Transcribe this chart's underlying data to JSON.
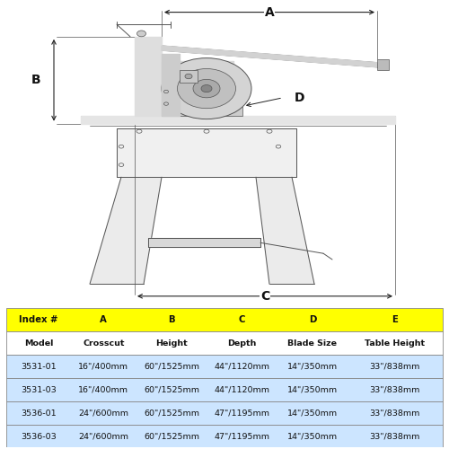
{
  "bg_color": "#ffffff",
  "line_color": "#555555",
  "dark_line": "#333333",
  "table_header_bg": "#ffff00",
  "table_data_bg": "#cce5ff",
  "table_border": "#888888",
  "headers": [
    "Index #",
    "A",
    "B",
    "C",
    "D",
    "E"
  ],
  "subheaders": [
    "Model",
    "Crosscut",
    "Height",
    "Depth",
    "Blade Size",
    "Table Height"
  ],
  "rows": [
    [
      "3531-01",
      "16\"/400mm",
      "60\"/1525mm",
      "44\"/1120mm",
      "14\"/350mm",
      "33\"/838mm"
    ],
    [
      "3531-03",
      "16\"/400mm",
      "60\"/1525mm",
      "44\"/1120mm",
      "14\"/350mm",
      "33\"/838mm"
    ],
    [
      "3536-01",
      "24\"/600mm",
      "60\"/1525mm",
      "47\"/1195mm",
      "14\"/350mm",
      "33\"/838mm"
    ],
    [
      "3536-03",
      "24\"/600mm",
      "60\"/1525mm",
      "47\"/1195mm",
      "14\"/350mm",
      "33\"/838mm"
    ]
  ],
  "font_size_table": 6.8,
  "font_size_dim": 10,
  "lw_main": 0.7,
  "lw_thin": 0.5,
  "lw_dim": 0.7
}
